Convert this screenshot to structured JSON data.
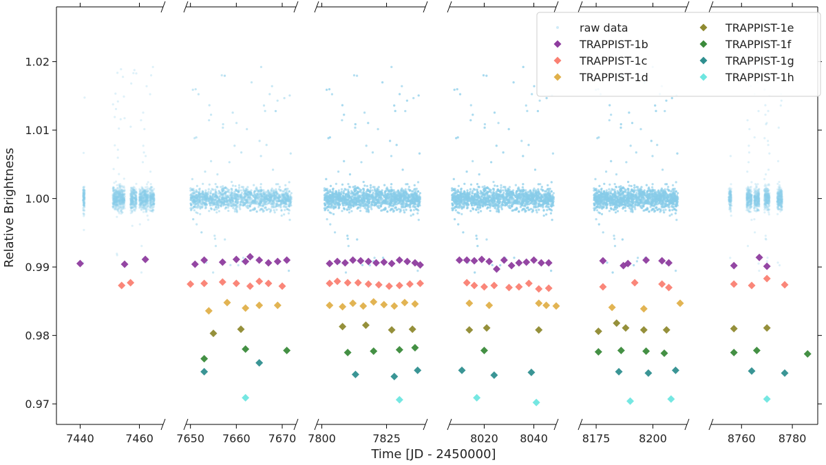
{
  "chart_data": {
    "type": "scatter",
    "title": "",
    "xlabel": "Time [JD - 2450000]",
    "ylabel": "Relative Brightness",
    "ylim": [
      0.967,
      1.028
    ],
    "yticks": [
      0.97,
      0.98,
      0.99,
      1.0,
      1.01,
      1.02
    ],
    "ytick_labels": [
      "0.97",
      "0.98",
      "0.99",
      "1.00",
      "1.01",
      "1.02"
    ],
    "broken_axis": true,
    "panels": [
      {
        "xlim": [
          7432,
          7468
        ],
        "xticks": [
          7440,
          7460
        ],
        "xtick_labels": [
          "7440",
          "7460"
        ],
        "raw_segments": [
          [
            7441,
            7441.5
          ],
          [
            7451,
            7455
          ],
          [
            7457,
            7459
          ],
          [
            7460,
            7463
          ],
          [
            7463.5,
            7465
          ]
        ]
      },
      {
        "xlim": [
          7649,
          7673
        ],
        "xticks": [
          7650,
          7660,
          7670
        ],
        "xtick_labels": [
          "7650",
          "7660",
          "7670"
        ],
        "raw_segments": [
          [
            7650,
            7672
          ]
        ]
      },
      {
        "xlim": [
          7798,
          7840
        ],
        "xticks": [
          7800,
          7825
        ],
        "xtick_labels": [
          "7800",
          "7825"
        ],
        "raw_segments": [
          [
            7801,
            7838
          ]
        ]
      },
      {
        "xlim": [
          8006,
          8049
        ],
        "xticks": [
          8020,
          8040
        ],
        "xtick_labels": [
          "8020",
          "8040"
        ],
        "raw_segments": [
          [
            8007,
            8048
          ]
        ]
      },
      {
        "xlim": [
          8168,
          8215
        ],
        "xticks": [
          8175,
          8200
        ],
        "xtick_labels": [
          "8175",
          "8200"
        ],
        "raw_segments": [
          [
            8174,
            8211
          ]
        ]
      },
      {
        "xlim": [
          8748,
          8790
        ],
        "xticks": [
          8760,
          8780
        ],
        "xtick_labels": [
          "8760",
          "8780"
        ],
        "raw_segments": [
          [
            8755,
            8756
          ],
          [
            8762,
            8764
          ],
          [
            8765,
            8767
          ],
          [
            8769,
            8771
          ],
          [
            8774,
            8776
          ]
        ]
      }
    ],
    "series": [
      {
        "name": "raw data",
        "color": "#87ceeb",
        "marker": "dot",
        "note": "dense photometry points, relative brightness roughly 0.995-1.005 with excursions up to ~1.026 and down to ~0.971"
      },
      {
        "name": "TRAPPIST-1b",
        "color": "#8e3c9e",
        "marker": "diamond",
        "x": [
          7440,
          7455,
          7462,
          7651,
          7653,
          7657,
          7660,
          7662,
          7663,
          7665,
          7667,
          7669,
          7671,
          7803,
          7806,
          7809,
          7812,
          7815,
          7818,
          7821,
          7824,
          7827,
          7830,
          7833,
          7836,
          7838,
          8010,
          8013,
          8016,
          8019,
          8022,
          8025,
          8028,
          8031,
          8034,
          8037,
          8040,
          8043,
          8046,
          8178,
          8187,
          8189,
          8197,
          8204,
          8207,
          8757,
          8767,
          8770
        ],
        "y": [
          0.9905,
          0.9904,
          0.9911,
          0.9904,
          0.991,
          0.9907,
          0.9911,
          0.9908,
          0.9915,
          0.991,
          0.9906,
          0.9908,
          0.991,
          0.9905,
          0.9908,
          0.9906,
          0.991,
          0.9909,
          0.9908,
          0.9906,
          0.9907,
          0.9905,
          0.991,
          0.9908,
          0.9906,
          0.9903,
          0.991,
          0.991,
          0.9909,
          0.9911,
          0.9908,
          0.9897,
          0.991,
          0.9902,
          0.9906,
          0.9907,
          0.991,
          0.9906,
          0.9906,
          0.9909,
          0.9902,
          0.9905,
          0.991,
          0.9909,
          0.9906,
          0.9902,
          0.9914,
          0.9901
        ]
      },
      {
        "name": "TRAPPIST-1c",
        "color": "#fa8072",
        "marker": "diamond",
        "x": [
          7454,
          7457,
          7650,
          7653,
          7657,
          7660,
          7663,
          7665,
          7667,
          7670,
          7803,
          7806,
          7810,
          7814,
          7818,
          7822,
          7826,
          7830,
          7834,
          7838,
          8013,
          8016,
          8020,
          8024,
          8030,
          8034,
          8038,
          8042,
          8046,
          8178,
          8192,
          8204,
          8207,
          8757,
          8764,
          8770,
          8777
        ],
        "y": [
          0.9873,
          0.9877,
          0.9875,
          0.9876,
          0.9878,
          0.9876,
          0.9872,
          0.9879,
          0.9876,
          0.9872,
          0.9876,
          0.9879,
          0.9877,
          0.9877,
          0.9875,
          0.9874,
          0.9872,
          0.9873,
          0.9875,
          0.9876,
          0.9877,
          0.9873,
          0.9871,
          0.9873,
          0.987,
          0.9871,
          0.9876,
          0.9868,
          0.9869,
          0.9871,
          0.9877,
          0.9875,
          0.987,
          0.9875,
          0.9873,
          0.9883,
          0.9874
        ]
      },
      {
        "name": "TRAPPIST-1d",
        "color": "#e0b04a",
        "marker": "diamond",
        "x": [
          7654,
          7658,
          7662,
          7665,
          7669,
          7803,
          7808,
          7812,
          7816,
          7820,
          7824,
          7828,
          7832,
          7836,
          8014,
          8022,
          8042,
          8045,
          8049,
          8182,
          8196,
          8212
        ],
        "y": [
          0.9836,
          0.9848,
          0.984,
          0.9844,
          0.9844,
          0.9844,
          0.9842,
          0.9847,
          0.9843,
          0.9849,
          0.9845,
          0.9843,
          0.9848,
          0.9846,
          0.9847,
          0.9844,
          0.9847,
          0.9844,
          0.9843,
          0.9841,
          0.9839,
          0.9847
        ]
      },
      {
        "name": "TRAPPIST-1e",
        "color": "#8f8a30",
        "marker": "diamond",
        "x": [
          7655,
          7661,
          7808,
          7817,
          7827,
          7835,
          8014,
          8021,
          8042,
          8176,
          8184,
          8188,
          8196,
          8206,
          8757,
          8770
        ],
        "y": [
          0.9803,
          0.9809,
          0.9813,
          0.9815,
          0.9808,
          0.9809,
          0.9808,
          0.9811,
          0.9808,
          0.9806,
          0.9818,
          0.9811,
          0.9808,
          0.9808,
          0.981,
          0.9811
        ]
      },
      {
        "name": "TRAPPIST-1f",
        "color": "#3a8a3a",
        "marker": "diamond",
        "x": [
          7653,
          7662,
          7671,
          7810,
          7820,
          7830,
          7836,
          8020,
          8176,
          8186,
          8197,
          8205,
          8757,
          8766,
          8786
        ],
        "y": [
          0.9766,
          0.978,
          0.9778,
          0.9775,
          0.9777,
          0.9779,
          0.9782,
          0.9778,
          0.9776,
          0.9778,
          0.9777,
          0.9774,
          0.9775,
          0.9778,
          0.9773
        ]
      },
      {
        "name": "TRAPPIST-1g",
        "color": "#2f8f8f",
        "marker": "diamond",
        "x": [
          7653,
          7665,
          7813,
          7828,
          7837,
          8011,
          8024,
          8039,
          8185,
          8198,
          8210,
          8764,
          8777
        ],
        "y": [
          0.9747,
          0.976,
          0.9743,
          0.974,
          0.9749,
          0.9749,
          0.9742,
          0.9746,
          0.9747,
          0.9745,
          0.9749,
          0.9748,
          0.9745
        ]
      },
      {
        "name": "TRAPPIST-1h",
        "color": "#6ee6e0",
        "marker": "diamond",
        "x": [
          7662,
          7830,
          8017,
          8041,
          8190,
          8208,
          8770
        ],
        "y": [
          0.9709,
          0.9706,
          0.9709,
          0.9702,
          0.9704,
          0.9707,
          0.9707
        ]
      }
    ],
    "legend": {
      "placement": "top-right",
      "columns": 2,
      "entries": [
        "raw data",
        "TRAPPIST-1b",
        "TRAPPIST-1c",
        "TRAPPIST-1d",
        "TRAPPIST-1e",
        "TRAPPIST-1f",
        "TRAPPIST-1g",
        "TRAPPIST-1h"
      ]
    }
  }
}
